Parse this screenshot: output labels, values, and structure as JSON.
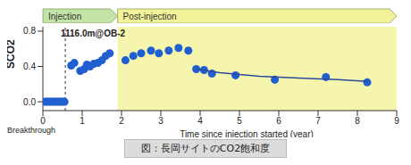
{
  "chart_data": {
    "type": "scatter",
    "phases": [
      {
        "label": "Injection",
        "start": 0,
        "end": 1.9,
        "color": "#c4e3a8"
      },
      {
        "label": "Post-injection",
        "start": 1.9,
        "end": 9,
        "color": "#f2f29a"
      }
    ],
    "annotation": "1116.0m@OB-2",
    "breakthrough": {
      "label": "Breakthrough",
      "x": 0.57
    },
    "xlabel": "Time since injection started (year)",
    "ylabel": "SCO2",
    "caption": "図：長岡サイトのCO2飽和度",
    "xlim": [
      0,
      9
    ],
    "xticks": [
      0,
      1,
      2,
      3,
      4,
      5,
      6,
      7,
      8,
      9
    ],
    "ylim": [
      -0.1,
      0.85
    ],
    "yticks": [
      {
        "value": 0,
        "label": "0.0"
      },
      {
        "value": 0.4,
        "label": "0.4"
      },
      {
        "value": 0.8,
        "label": "0.8"
      }
    ],
    "series": [
      {
        "type": "scatter",
        "color": "#1f5fd0",
        "marker": "circle",
        "x": [
          0.05,
          0.1,
          0.15,
          0.2,
          0.25,
          0.3,
          0.35,
          0.4,
          0.45,
          0.5,
          0.55,
          0.72,
          0.8,
          0.95,
          1.05,
          1.12,
          1.2,
          1.3,
          1.4,
          1.5,
          1.6,
          1.7,
          2.1,
          2.3,
          2.5,
          2.75,
          2.95,
          3.2,
          3.45,
          3.7,
          3.9,
          4.1,
          4.3,
          4.9,
          5.9,
          7.2,
          8.25
        ],
        "values": [
          0,
          0,
          0,
          0,
          0,
          0,
          0,
          0,
          0,
          0,
          0,
          0.41,
          0.44,
          0.35,
          0.37,
          0.42,
          0.4,
          0.43,
          0.44,
          0.47,
          0.52,
          0.55,
          0.47,
          0.52,
          0.55,
          0.58,
          0.55,
          0.58,
          0.61,
          0.58,
          0.37,
          0.36,
          0.32,
          0.3,
          0.25,
          0.28,
          0.22
        ]
      },
      {
        "type": "line",
        "color": "#2b4a9b",
        "x": [
          3.9,
          4.5,
          5.5,
          6.5,
          7.5,
          8.25
        ],
        "values": [
          0.37,
          0.33,
          0.29,
          0.27,
          0.25,
          0.23
        ]
      }
    ]
  }
}
